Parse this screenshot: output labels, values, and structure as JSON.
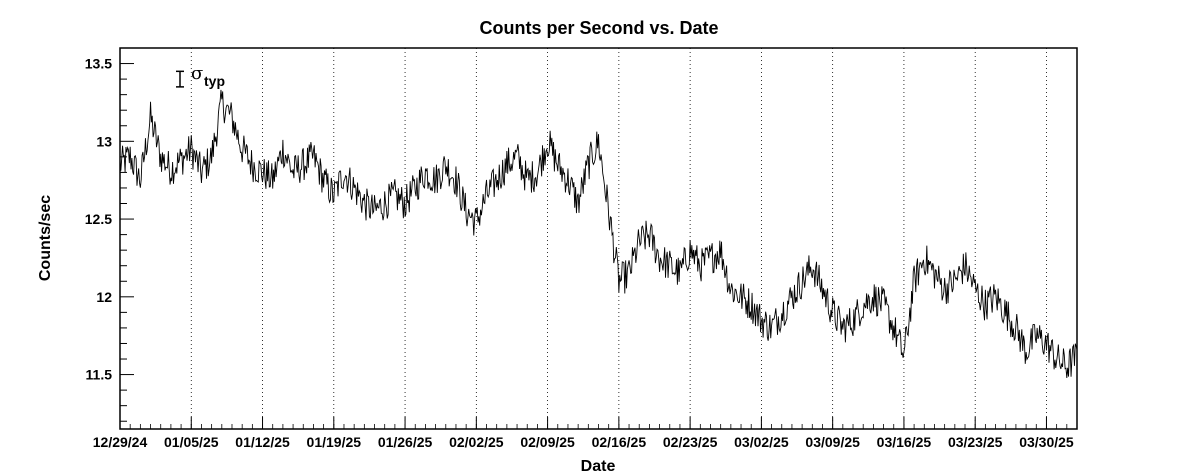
{
  "chart_data": {
    "type": "line",
    "title": "Counts per Second vs. Date",
    "xlabel": "Date",
    "ylabel": "Counts/sec",
    "xlim": [
      "2024-12-29",
      "2025-04-02"
    ],
    "ylim": [
      11.15,
      13.6
    ],
    "yticks": [
      11.5,
      12,
      12.5,
      13,
      13.5
    ],
    "ytick_labels": [
      "11.5",
      "12",
      "12.5",
      "13",
      "13.5"
    ],
    "xticks": [
      "2024-12-29",
      "2025-01-05",
      "2025-01-12",
      "2025-01-19",
      "2025-01-26",
      "2025-02-02",
      "2025-02-09",
      "2025-02-16",
      "2025-02-23",
      "2025-03-02",
      "2025-03-09",
      "2025-03-16",
      "2025-03-23",
      "2025-03-30"
    ],
    "xtick_labels": [
      "12/29/24",
      "01/05/25",
      "01/12/25",
      "01/19/25",
      "01/26/25",
      "02/02/25",
      "02/09/25",
      "02/16/25",
      "02/23/25",
      "03/02/25",
      "03/09/25",
      "03/16/25",
      "03/23/25",
      "03/30/25"
    ],
    "grid": "vertical-dotted",
    "annotation": {
      "symbol": "σ",
      "subscript": "typ",
      "sigma_value": 0.05
    },
    "series": [
      {
        "line_color": "#000000",
        "x": [
          "2024-12-29",
          "2024-12-30",
          "2024-12-31",
          "2025-01-01",
          "2025-01-02",
          "2025-01-03",
          "2025-01-04",
          "2025-01-05",
          "2025-01-06",
          "2025-01-07",
          "2025-01-08",
          "2025-01-09",
          "2025-01-10",
          "2025-01-11",
          "2025-01-12",
          "2025-01-13",
          "2025-01-14",
          "2025-01-15",
          "2025-01-16",
          "2025-01-17",
          "2025-01-18",
          "2025-01-19",
          "2025-01-20",
          "2025-01-21",
          "2025-01-22",
          "2025-01-23",
          "2025-01-24",
          "2025-01-25",
          "2025-01-26",
          "2025-01-27",
          "2025-01-28",
          "2025-01-29",
          "2025-01-30",
          "2025-01-31",
          "2025-02-01",
          "2025-02-02",
          "2025-02-03",
          "2025-02-04",
          "2025-02-05",
          "2025-02-06",
          "2025-02-07",
          "2025-02-08",
          "2025-02-09",
          "2025-02-10",
          "2025-02-11",
          "2025-02-12",
          "2025-02-13",
          "2025-02-14",
          "2025-02-15",
          "2025-02-16",
          "2025-02-17",
          "2025-02-18",
          "2025-02-19",
          "2025-02-20",
          "2025-02-21",
          "2025-02-22",
          "2025-02-23",
          "2025-02-24",
          "2025-02-25",
          "2025-02-26",
          "2025-02-27",
          "2025-02-28",
          "2025-03-01",
          "2025-03-02",
          "2025-03-03",
          "2025-03-04",
          "2025-03-05",
          "2025-03-06",
          "2025-03-07",
          "2025-03-08",
          "2025-03-09",
          "2025-03-10",
          "2025-03-11",
          "2025-03-12",
          "2025-03-13",
          "2025-03-14",
          "2025-03-15",
          "2025-03-16",
          "2025-03-17",
          "2025-03-18",
          "2025-03-19",
          "2025-03-20",
          "2025-03-21",
          "2025-03-22",
          "2025-03-23",
          "2025-03-24",
          "2025-03-25",
          "2025-03-26",
          "2025-03-27",
          "2025-03-28",
          "2025-03-29",
          "2025-03-30",
          "2025-03-31",
          "2025-04-01",
          "2025-04-02"
        ],
        "y": [
          12.85,
          12.9,
          12.75,
          13.15,
          12.9,
          12.82,
          12.88,
          12.95,
          12.8,
          12.9,
          13.25,
          13.15,
          12.95,
          12.85,
          12.8,
          12.75,
          12.95,
          12.8,
          12.85,
          12.9,
          12.75,
          12.65,
          12.8,
          12.7,
          12.6,
          12.55,
          12.6,
          12.65,
          12.6,
          12.7,
          12.8,
          12.75,
          12.85,
          12.75,
          12.55,
          12.48,
          12.65,
          12.75,
          12.85,
          12.9,
          12.75,
          12.8,
          13.0,
          12.85,
          12.75,
          12.6,
          12.85,
          13.0,
          12.55,
          12.1,
          12.15,
          12.35,
          12.4,
          12.25,
          12.2,
          12.15,
          12.3,
          12.2,
          12.25,
          12.3,
          12.05,
          12.0,
          11.95,
          11.85,
          11.8,
          11.9,
          12.0,
          12.1,
          12.2,
          12.05,
          11.9,
          11.8,
          11.85,
          11.95,
          12.0,
          11.95,
          11.8,
          11.62,
          12.1,
          12.25,
          12.15,
          12.05,
          12.1,
          12.2,
          12.05,
          11.95,
          12.0,
          11.9,
          11.8,
          11.65,
          11.75,
          11.7,
          11.6,
          11.55,
          11.62
        ]
      }
    ]
  }
}
